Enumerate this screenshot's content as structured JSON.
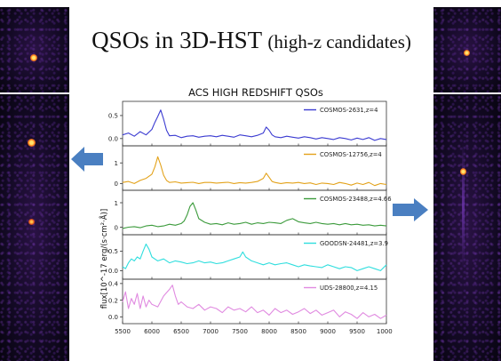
{
  "slide": {
    "title_main": "QSOs in 3D-HST",
    "title_sub": "(high-z candidates)"
  },
  "colors": {
    "background": "#ffffff",
    "arrow": "#4a7fc1"
  },
  "chart_data": {
    "type": "line",
    "title": "ACS HIGH REDSHIFT QSOs",
    "ylabel": "flux[10^-17 erg/(s·cm²·Å)]",
    "xlim": [
      5500,
      10000
    ],
    "x_ticks": [
      "5500",
      "6000",
      "6500",
      "7000",
      "7500",
      "8000",
      "8500",
      "9000",
      "9500",
      "10000"
    ],
    "legend_position": "upper right",
    "panels": [
      {
        "name": "COSMOS-2631,z=4",
        "color": "#3b3bd1",
        "ylim": [
          -0.1,
          0.75
        ],
        "y_ticks": [
          "0.5",
          "0.0"
        ],
        "x": [
          5500,
          5600,
          5700,
          5800,
          5900,
          6000,
          6050,
          6100,
          6150,
          6200,
          6250,
          6300,
          6400,
          6500,
          6600,
          6700,
          6800,
          6900,
          7000,
          7100,
          7200,
          7300,
          7400,
          7500,
          7600,
          7700,
          7800,
          7900,
          7950,
          8000,
          8050,
          8100,
          8200,
          8300,
          8400,
          8500,
          8600,
          8700,
          8800,
          8900,
          9000,
          9100,
          9200,
          9300,
          9400,
          9500,
          9600,
          9700,
          9800,
          9900,
          10000
        ],
        "values": [
          0.08,
          0.12,
          0.05,
          0.15,
          0.08,
          0.2,
          0.35,
          0.48,
          0.62,
          0.42,
          0.18,
          0.06,
          0.07,
          0.02,
          0.05,
          0.06,
          0.03,
          0.05,
          0.06,
          0.04,
          0.07,
          0.05,
          0.03,
          0.08,
          0.06,
          0.04,
          0.07,
          0.12,
          0.25,
          0.18,
          0.08,
          0.04,
          0.02,
          0.05,
          0.03,
          0.01,
          0.04,
          0.02,
          -0.01,
          0.02,
          0.0,
          -0.02,
          0.02,
          0.0,
          -0.03,
          0.01,
          -0.02,
          0.02,
          -0.04,
          0.0,
          -0.02
        ]
      },
      {
        "name": "COSMOS-12756,z=4",
        "color": "#e3a21a",
        "ylim": [
          -0.2,
          1.7
        ],
        "y_ticks": [
          "1",
          "0"
        ],
        "x": [
          5500,
          5600,
          5700,
          5800,
          5900,
          6000,
          6050,
          6100,
          6150,
          6200,
          6250,
          6300,
          6400,
          6500,
          6600,
          6700,
          6800,
          6900,
          7000,
          7100,
          7200,
          7300,
          7400,
          7500,
          7600,
          7700,
          7800,
          7900,
          7950,
          8000,
          8050,
          8100,
          8200,
          8300,
          8400,
          8500,
          8600,
          8700,
          8800,
          8900,
          9000,
          9100,
          9200,
          9300,
          9400,
          9500,
          9600,
          9700,
          9800,
          9900,
          10000
        ],
        "values": [
          0.05,
          0.1,
          0.0,
          0.15,
          0.25,
          0.45,
          0.8,
          1.3,
          0.9,
          0.4,
          0.15,
          0.05,
          0.08,
          0.02,
          0.04,
          0.06,
          0.0,
          0.05,
          0.05,
          0.02,
          0.04,
          0.06,
          0.0,
          0.04,
          0.02,
          0.05,
          0.1,
          0.25,
          0.5,
          0.3,
          0.1,
          0.05,
          0.0,
          0.04,
          0.02,
          0.05,
          0.0,
          0.03,
          -0.05,
          0.02,
          0.0,
          -0.05,
          0.05,
          0.0,
          -0.08,
          0.02,
          -0.05,
          0.05,
          -0.1,
          0.0,
          -0.05
        ]
      },
      {
        "name": "COSMOS-23488,z=4.66",
        "color": "#3c9b3c",
        "ylim": [
          -0.2,
          1.4
        ],
        "y_ticks": [
          "1",
          "0"
        ],
        "x": [
          5500,
          5600,
          5700,
          5800,
          5900,
          6000,
          6100,
          6200,
          6300,
          6400,
          6500,
          6550,
          6600,
          6650,
          6700,
          6750,
          6800,
          6900,
          7000,
          7100,
          7200,
          7300,
          7400,
          7500,
          7600,
          7700,
          7800,
          7900,
          8000,
          8100,
          8200,
          8300,
          8400,
          8500,
          8600,
          8700,
          8800,
          8900,
          9000,
          9100,
          9200,
          9300,
          9400,
          9500,
          9600,
          9700,
          9800,
          9900,
          10000
        ],
        "values": [
          -0.05,
          0.0,
          0.02,
          -0.02,
          0.05,
          0.08,
          0.02,
          0.05,
          0.12,
          0.08,
          0.15,
          0.25,
          0.5,
          0.85,
          1.0,
          0.7,
          0.35,
          0.2,
          0.12,
          0.15,
          0.1,
          0.18,
          0.12,
          0.15,
          0.2,
          0.12,
          0.18,
          0.15,
          0.2,
          0.18,
          0.15,
          0.28,
          0.35,
          0.22,
          0.18,
          0.15,
          0.2,
          0.15,
          0.12,
          0.15,
          0.1,
          0.15,
          0.1,
          0.12,
          0.08,
          0.1,
          0.05,
          0.08,
          0.05
        ]
      },
      {
        "name": "GOODSN-24481,z=3.9",
        "color": "#2fdede",
        "ylim": [
          -0.15,
          0.85
        ],
        "y_ticks": [
          "0.5",
          "0.0"
        ],
        "x": [
          5500,
          5550,
          5600,
          5650,
          5700,
          5750,
          5800,
          5850,
          5900,
          5950,
          6000,
          6100,
          6200,
          6300,
          6400,
          6500,
          6600,
          6700,
          6800,
          6900,
          7000,
          7100,
          7200,
          7300,
          7400,
          7500,
          7550,
          7600,
          7700,
          7800,
          7900,
          8000,
          8100,
          8200,
          8300,
          8400,
          8500,
          8600,
          8700,
          8800,
          8900,
          9000,
          9100,
          9200,
          9300,
          9400,
          9500,
          9600,
          9700,
          9800,
          9900,
          10000
        ],
        "values": [
          0.1,
          0.05,
          0.2,
          0.3,
          0.25,
          0.35,
          0.3,
          0.5,
          0.68,
          0.55,
          0.35,
          0.25,
          0.3,
          0.2,
          0.25,
          0.22,
          0.18,
          0.2,
          0.25,
          0.2,
          0.22,
          0.18,
          0.2,
          0.25,
          0.3,
          0.35,
          0.48,
          0.35,
          0.25,
          0.2,
          0.15,
          0.2,
          0.15,
          0.18,
          0.2,
          0.15,
          0.1,
          0.15,
          0.12,
          0.1,
          0.08,
          0.15,
          0.1,
          0.05,
          0.1,
          0.08,
          0.0,
          0.05,
          0.1,
          0.05,
          0.0,
          0.15
        ]
      },
      {
        "name": "UDS-28800,z=4.15",
        "color": "#e08ae0",
        "ylim": [
          -0.05,
          0.42
        ],
        "y_ticks": [
          "0.4",
          "0.2",
          "0.0"
        ],
        "x": [
          5500,
          5550,
          5600,
          5650,
          5700,
          5750,
          5800,
          5850,
          5900,
          5950,
          6000,
          6100,
          6200,
          6300,
          6350,
          6400,
          6450,
          6500,
          6600,
          6700,
          6800,
          6900,
          7000,
          7100,
          7200,
          7300,
          7400,
          7500,
          7600,
          7700,
          7800,
          7900,
          8000,
          8100,
          8200,
          8300,
          8400,
          8500,
          8600,
          8700,
          8800,
          8900,
          9000,
          9100,
          9200,
          9300,
          9400,
          9500,
          9600,
          9700,
          9800,
          9900,
          10000
        ],
        "values": [
          0.18,
          0.3,
          0.1,
          0.22,
          0.15,
          0.28,
          0.1,
          0.25,
          0.12,
          0.2,
          0.15,
          0.12,
          0.25,
          0.33,
          0.38,
          0.25,
          0.15,
          0.18,
          0.12,
          0.1,
          0.15,
          0.08,
          0.12,
          0.1,
          0.05,
          0.12,
          0.08,
          0.1,
          0.06,
          0.12,
          0.05,
          0.08,
          0.02,
          0.1,
          0.05,
          0.08,
          0.03,
          0.06,
          0.1,
          0.04,
          0.08,
          0.02,
          0.05,
          0.08,
          0.0,
          0.06,
          0.03,
          -0.02,
          0.05,
          0.0,
          0.03,
          -0.02,
          0.02
        ]
      }
    ]
  }
}
